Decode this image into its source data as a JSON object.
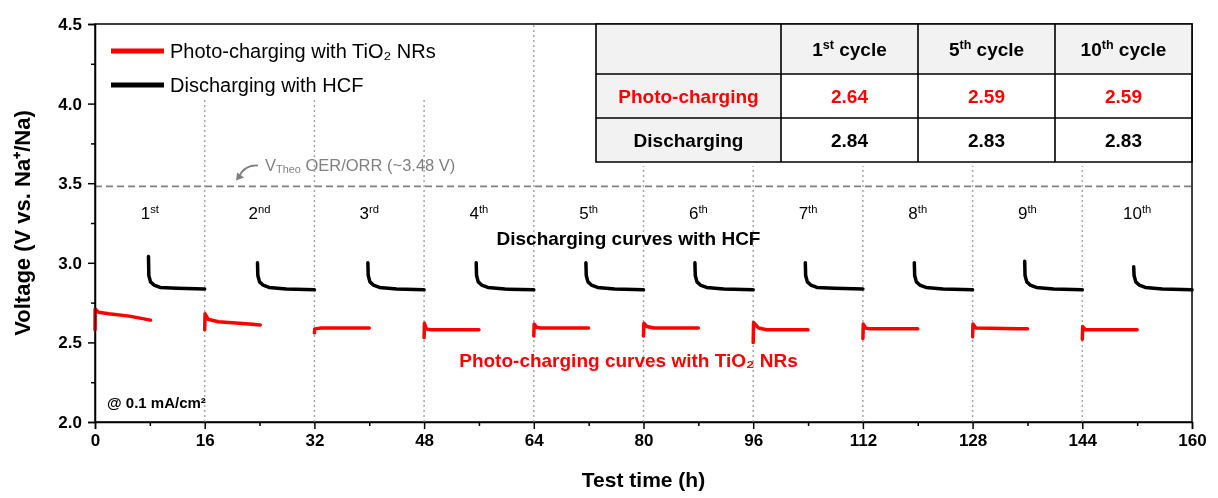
{
  "chart_data": [
    {
      "type": "line",
      "xlabel": "Test time (h)",
      "ylabel": "Voltage (V vs. Na⁺/Na)",
      "xlim": [
        0,
        160
      ],
      "ylim": [
        2,
        4.5
      ],
      "xticks": [
        0,
        {
          "value": 8,
          "label": null
        },
        16,
        {
          "value": 24,
          "label": null
        },
        32,
        {
          "value": 40,
          "label": null
        },
        48,
        {
          "value": 56,
          "label": null
        },
        64,
        {
          "value": 72,
          "label": null
        },
        80,
        {
          "value": 88,
          "label": null
        },
        96,
        {
          "value": 104,
          "label": null
        },
        112,
        {
          "value": 120,
          "label": null
        },
        128,
        {
          "value": 136,
          "label": null
        },
        144,
        {
          "value": 152,
          "label": null
        },
        160
      ],
      "yticks": [
        {
          "value": 2,
          "label": "2.0"
        },
        {
          "value": 2.25,
          "label": null
        },
        {
          "value": 2.5,
          "label": "2.5"
        },
        {
          "value": 2.75,
          "label": null
        },
        {
          "value": 3,
          "label": "3.0"
        },
        {
          "value": 3.25,
          "label": null
        },
        {
          "value": 3.5,
          "label": "3.5"
        },
        {
          "value": 3.75,
          "label": null
        },
        {
          "value": 4,
          "label": "4.0"
        },
        {
          "value": 4.25,
          "label": null
        },
        {
          "value": 4.5,
          "label": "4.5"
        }
      ],
      "legend": "top left",
      "series": [
        {
          "name": "Photo-charging with TiO₂ NRs",
          "color": "#ff0000",
          "x": [
            0,
            0.02,
            0.5,
            2,
            5,
            8.1,
            12,
            16,
            16.05,
            16.5,
            18,
            21,
            24.1,
            28,
            32,
            32.05,
            33,
            40,
            44,
            48,
            48.05,
            48.3,
            49,
            56,
            60,
            64,
            64.05,
            64.4,
            65,
            72,
            76,
            80,
            80.05,
            80.5,
            81.5,
            88,
            92,
            96,
            96.05,
            96.8,
            98,
            104,
            108,
            112,
            112.05,
            112.4,
            113,
            120,
            124,
            128,
            128.05,
            128.5,
            136,
            140,
            144,
            144.05,
            144.4,
            152
          ],
          "values": [
            2.58,
            2.71,
            2.69,
            2.68,
            2.665,
            2.64,
            null,
            2.58,
            2.68,
            2.645,
            2.63,
            2.62,
            2.61,
            null,
            2.56,
            2.585,
            2.59,
            2.59,
            null,
            2.53,
            2.62,
            2.585,
            2.58,
            2.58,
            null,
            2.54,
            2.615,
            2.595,
            2.59,
            2.59,
            null,
            2.54,
            2.62,
            2.6,
            2.59,
            2.59,
            null,
            2.5,
            2.625,
            2.59,
            2.58,
            2.58,
            null,
            2.525,
            2.615,
            2.59,
            2.585,
            2.585,
            null,
            2.535,
            2.615,
            2.59,
            2.585,
            null,
            2.52,
            2.6,
            2.58,
            2.58
          ]
        },
        {
          "name": "Discharging with HCF",
          "color": "#000000",
          "x": [
            7.8,
            7.85,
            8.1,
            8.6,
            9.5,
            12,
            16,
            20,
            23.7,
            23.75,
            24,
            24.5,
            25.4,
            27.9,
            32,
            36,
            39.8,
            39.85,
            40.1,
            40.6,
            41.5,
            44,
            48,
            52,
            55.6,
            55.65,
            55.9,
            56.4,
            57.3,
            59.8,
            64,
            68,
            71.6,
            71.65,
            71.9,
            72.4,
            73.3,
            75.8,
            80,
            84,
            87.5,
            87.55,
            87.8,
            88.3,
            89.2,
            91.7,
            96,
            100,
            103.6,
            103.65,
            103.9,
            104.4,
            105.3,
            107.8,
            112,
            116,
            119.5,
            119.55,
            119.8,
            120.3,
            121.2,
            123.7,
            128,
            132,
            135.6,
            135.65,
            135.9,
            136.4,
            137.3,
            139.8,
            144,
            148,
            151.5,
            151.55,
            151.8,
            152.3,
            153.2,
            155.7,
            160
          ],
          "values": [
            3.04,
            2.92,
            2.88,
            2.86,
            2.845,
            2.84,
            2.835,
            null,
            3.0,
            2.92,
            2.88,
            2.86,
            2.845,
            2.835,
            2.83,
            null,
            3.0,
            2.92,
            2.88,
            2.86,
            2.845,
            2.835,
            2.83,
            null,
            3.0,
            2.92,
            2.88,
            2.86,
            2.845,
            2.835,
            2.83,
            null,
            3.0,
            2.92,
            2.88,
            2.86,
            2.845,
            2.835,
            2.83,
            null,
            3.0,
            2.92,
            2.88,
            2.86,
            2.845,
            2.835,
            2.83,
            null,
            3.0,
            2.92,
            2.88,
            2.86,
            2.845,
            2.84,
            2.835,
            null,
            3.0,
            2.92,
            2.88,
            2.86,
            2.845,
            2.835,
            2.83,
            null,
            3.01,
            2.92,
            2.88,
            2.86,
            2.845,
            2.835,
            2.83,
            null,
            2.975,
            2.92,
            2.88,
            2.86,
            2.845,
            2.835,
            2.83
          ]
        }
      ],
      "ref_lines": [
        {
          "axis": "y",
          "value": 3.48,
          "label": "V$_{Theo}$ OER/ORR (~3.48 V)",
          "color": "#808080",
          "line_style": "dashed"
        },
        {
          "axis": "x",
          "value": 16,
          "color": "#a6a6a6",
          "line_style": "dotted"
        },
        {
          "axis": "x",
          "value": 32,
          "color": "#a6a6a6",
          "line_style": "dotted"
        },
        {
          "axis": "x",
          "value": 48,
          "color": "#a6a6a6",
          "line_style": "dotted"
        },
        {
          "axis": "x",
          "value": 64,
          "color": "#a6a6a6",
          "line_style": "dotted"
        },
        {
          "axis": "x",
          "value": 80,
          "color": "#a6a6a6",
          "line_style": "dotted"
        },
        {
          "axis": "x",
          "value": 96,
          "color": "#a6a6a6",
          "line_style": "dotted"
        },
        {
          "axis": "x",
          "value": 112,
          "color": "#a6a6a6",
          "line_style": "dotted"
        },
        {
          "axis": "x",
          "value": 128,
          "color": "#a6a6a6",
          "line_style": "dotted"
        },
        {
          "axis": "x",
          "value": 144,
          "color": "#a6a6a6",
          "line_style": "dotted"
        }
      ],
      "annotations": [
        "1$^{st}$",
        "2$^{nd}$",
        "3$^{rd}$",
        "4$^{th}$",
        "5$^{th}$",
        "6$^{th}$",
        "7$^{th}$",
        "8$^{th}$",
        "9$^{th}$",
        "10$^{th}$",
        "Photo-charging curves with TiO₂ NRs",
        "Discharging curves with HCF",
        "@ 0.1 mA/cm²"
      ]
    },
    {
      "type": "other",
      "categories": [
        "1$^{st}$ cycle",
        "5$^{th}$ cycle",
        "10$^{th}$ cycle"
      ],
      "series": [
        {
          "name": "Photo-charging",
          "color": "#ff0000",
          "values": [
            2.64,
            2.59,
            2.59
          ]
        },
        {
          "name": "Discharging",
          "color": "#000000",
          "values": [
            2.84,
            2.83,
            2.83
          ]
        }
      ],
      "data_labels": true
    }
  ]
}
